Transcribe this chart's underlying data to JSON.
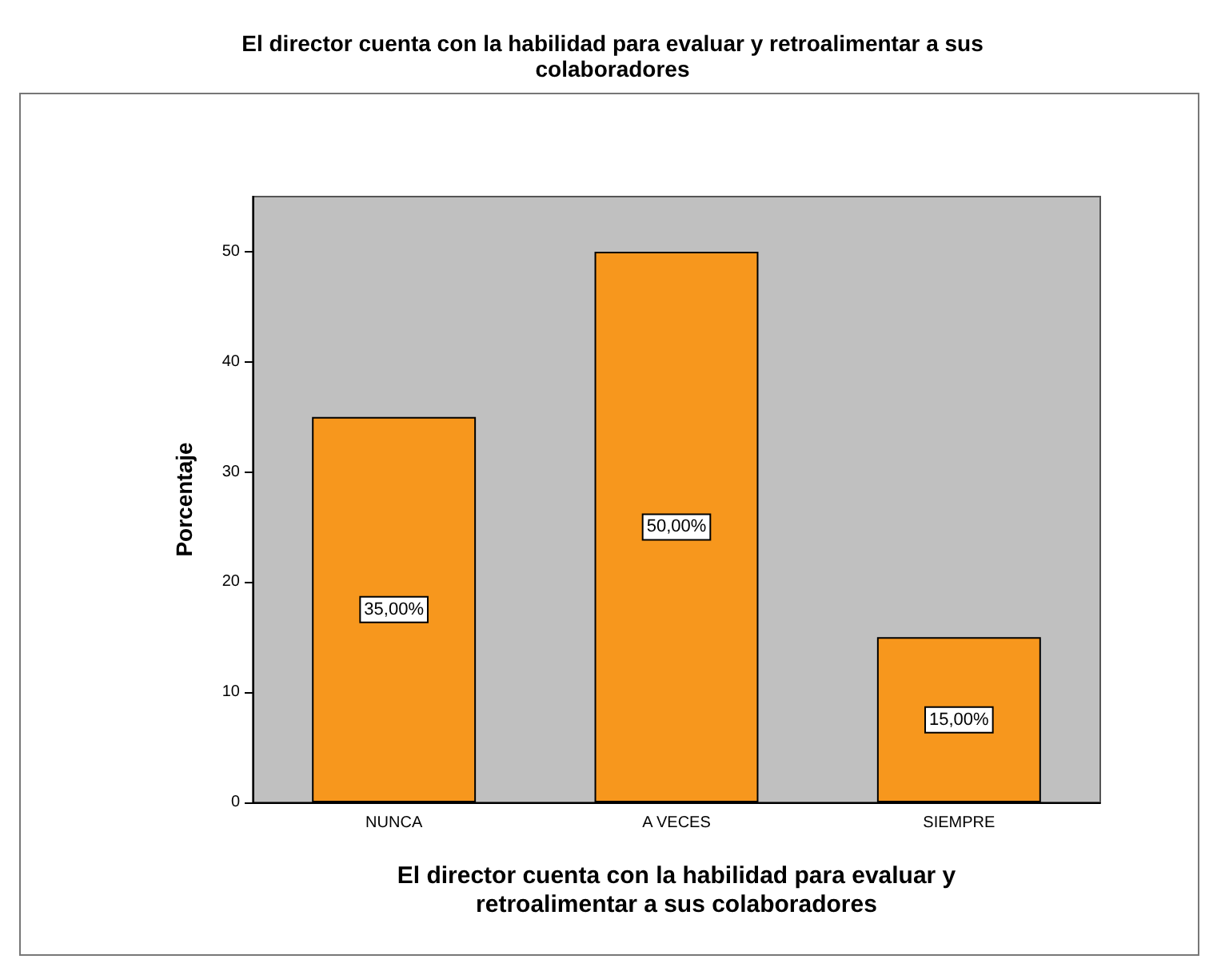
{
  "chart_data": {
    "type": "bar",
    "title": "El director cuenta con la habilidad para evaluar y retroalimentar a sus\ncolaboradores",
    "xlabel": "El director cuenta con la habilidad para evaluar y\nretroalimentar a sus colaboradores",
    "ylabel": "Porcentaje",
    "categories": [
      "NUNCA",
      "A VECES",
      "SIEMPRE"
    ],
    "values": [
      35,
      50,
      15
    ],
    "value_labels": [
      "35,00%",
      "50,00%",
      "15,00%"
    ],
    "color": "#f7971d",
    "ylim": [
      0,
      55
    ],
    "yticks": [
      0,
      10,
      20,
      30,
      40,
      50
    ],
    "grid": false
  }
}
